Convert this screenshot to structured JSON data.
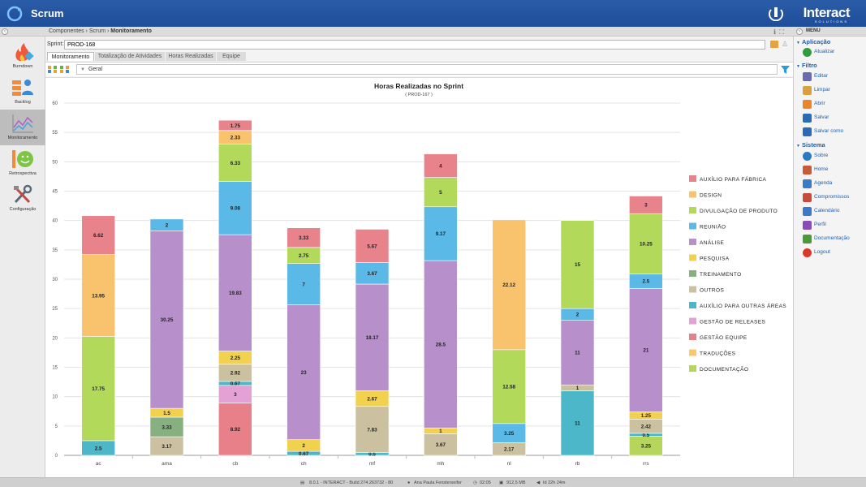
{
  "app": {
    "title": "Scrum",
    "brand": "Interact",
    "brand_sub": "SOLUTIONS"
  },
  "breadcrumb": {
    "items": [
      "Componentes",
      "Scrum",
      "Monitoramento"
    ]
  },
  "menu_header": "MENU",
  "left_nav": [
    {
      "label": "Burndown",
      "icon": "fire-icon"
    },
    {
      "label": "Backlog",
      "icon": "backlog-icon"
    },
    {
      "label": "Monitoramento",
      "icon": "chart-line-icon",
      "active": true
    },
    {
      "label": "Retrospectiva",
      "icon": "smiley-icon"
    },
    {
      "label": "Configuração",
      "icon": "tools-icon"
    }
  ],
  "sprint": {
    "label": "Sprint:",
    "value": "PROD-168"
  },
  "tabs": [
    {
      "label": "Monitoramento",
      "active": true
    },
    {
      "label": "Totalização de Atividades"
    },
    {
      "label": "Horas Realizadas"
    },
    {
      "label": "Equipe"
    }
  ],
  "view_select": {
    "value": "Geral"
  },
  "right_menu": {
    "sections": [
      {
        "title": "Aplicação",
        "items": [
          {
            "label": "Atualizar",
            "color": "#2e9e3a"
          }
        ]
      },
      {
        "title": "Filtro",
        "items": [
          {
            "label": "Editar",
            "color": "#6a6ab0"
          },
          {
            "label": "Limpar",
            "color": "#d9a040"
          },
          {
            "label": "Abrir",
            "color": "#e8862a"
          },
          {
            "label": "Salvar",
            "color": "#2a6bb8"
          },
          {
            "label": "Salvar como",
            "color": "#2a6bb8"
          }
        ]
      },
      {
        "title": "Sistema",
        "items": [
          {
            "label": "Sobre",
            "color": "#2a78c8"
          },
          {
            "label": "Home",
            "color": "#c85a3a"
          },
          {
            "label": "Agenda",
            "color": "#3a7ac8"
          },
          {
            "label": "Compromissos",
            "color": "#c84a3a"
          },
          {
            "label": "Calendário",
            "color": "#3a7ac8"
          },
          {
            "label": "Perfil",
            "color": "#8a4ab8"
          },
          {
            "label": "Documentação",
            "color": "#4a9a3a"
          },
          {
            "label": "Logout",
            "color": "#d83a2a"
          }
        ]
      }
    ]
  },
  "status_bar": {
    "version": "8.0.1 - INTERACT - Build 274.263732 - 80",
    "user": "Ana Paula Fensterseifer",
    "time": "02:05",
    "memory": "912,5 MB",
    "uptime": "Id 22h 24m"
  },
  "chart_data": {
    "type": "bar",
    "stacked": true,
    "title": "Horas Realizadas no Sprint",
    "subtitle": "( PROD-167 )",
    "ylim": [
      0,
      60
    ],
    "yticks": [
      0,
      5,
      10,
      15,
      20,
      25,
      30,
      35,
      40,
      45,
      50,
      55,
      60
    ],
    "grid": true,
    "legend_position": "right",
    "categories": [
      "ac",
      "ama",
      "cb",
      "ch",
      "mf",
      "mh",
      "nl",
      "rb",
      "rrs"
    ],
    "series": [
      {
        "name": "DOCUMENTAÇÃO",
        "color": "#b5d65a",
        "values": [
          0,
          0,
          0,
          0,
          0,
          0,
          0,
          0,
          3.25
        ]
      },
      {
        "name": "TRADUÇÕES",
        "color": "#f9c86a",
        "values": [
          0,
          0,
          0,
          0,
          0,
          0,
          0,
          0,
          0
        ]
      },
      {
        "name": "GESTÃO EQUIPE",
        "color": "#e8808a",
        "values": [
          0,
          0,
          8.92,
          0,
          0,
          0,
          0,
          0,
          0
        ]
      },
      {
        "name": "GESTÃO DE RELEASES",
        "color": "#e3a1d6",
        "values": [
          0,
          0,
          3,
          0,
          0,
          0,
          0,
          0,
          0
        ]
      },
      {
        "name": "AUXÍLIO PARA OUTRAS ÁREAS",
        "color": "#4cb7c9",
        "values": [
          2.5,
          0,
          0.67,
          0.67,
          0.5,
          0,
          0,
          11,
          0.5
        ]
      },
      {
        "name": "OUTROS",
        "color": "#cbc09f",
        "values": [
          0,
          3.17,
          2.92,
          0,
          7.83,
          3.67,
          2.17,
          1,
          2.42
        ]
      },
      {
        "name": "TREINAMENTO",
        "color": "#86b07f",
        "values": [
          0,
          3.33,
          0,
          0,
          0,
          0,
          0,
          0,
          0
        ]
      },
      {
        "name": "PESQUISA",
        "color": "#f2d14e",
        "values": [
          0,
          1.5,
          2.25,
          2,
          2.67,
          1,
          0,
          0,
          1.25
        ]
      },
      {
        "name": "ANÁLISE",
        "color": "#b790cb",
        "values": [
          0,
          30.25,
          19.83,
          23,
          18.17,
          28.5,
          0,
          11,
          21
        ]
      },
      {
        "name": "REUNIÃO",
        "color": "#5ab9e6",
        "values": [
          0,
          2,
          9.08,
          7,
          3.67,
          9.17,
          3.25,
          2,
          2.5
        ]
      },
      {
        "name": "DIVULGAÇÃO DE PRODUTO",
        "color": "#b2d95a",
        "values": [
          17.75,
          0,
          6.33,
          2.75,
          0,
          5,
          12.58,
          15,
          10.25
        ]
      },
      {
        "name": "DESIGN",
        "color": "#f9c36e",
        "values": [
          13.95,
          0,
          2.33,
          0,
          0,
          0,
          22.12,
          0,
          0
        ]
      },
      {
        "name": "AUXÍLIO PARA FÁBRICA",
        "color": "#e8838c",
        "values": [
          6.62,
          0,
          1.75,
          3.33,
          5.67,
          4,
          0,
          0,
          3
        ]
      }
    ],
    "legend_order": [
      "AUXÍLIO PARA FÁBRICA",
      "DESIGN",
      "DIVULGAÇÃO DE PRODUTO",
      "REUNIÃO",
      "ANÁLISE",
      "PESQUISA",
      "TREINAMENTO",
      "OUTROS",
      "AUXÍLIO PARA OUTRAS ÁREAS",
      "GESTÃO DE RELEASES",
      "GESTÃO EQUIPE",
      "TRADUÇÕES",
      "DOCUMENTAÇÃO"
    ]
  }
}
